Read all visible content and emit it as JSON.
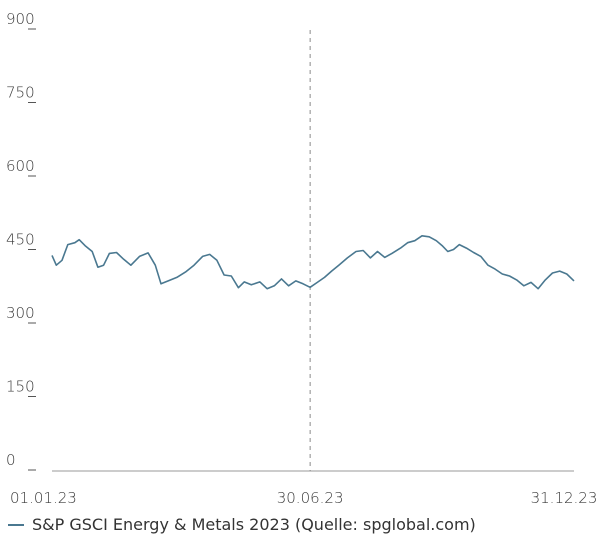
{
  "chart_data": {
    "type": "line",
    "title": "",
    "xlabel": "",
    "ylabel": "",
    "ylim": [
      0,
      900
    ],
    "yticks": [
      0,
      150,
      300,
      450,
      600,
      750,
      900
    ],
    "x_tick_labels": [
      "01.01.23",
      "30.06.23",
      "31.12.23"
    ],
    "x_range": [
      "2023-01-01",
      "2023-12-31"
    ],
    "marker_line_date": "2023-06-30",
    "grid": false,
    "legend_position": "bottom-left",
    "series": [
      {
        "name": "S&P GSCI Energy & Metals 2023 (Quelle: spglobal.com)",
        "color": "#4a7890",
        "points": [
          [
            "2023-01-01",
            440
          ],
          [
            "2023-01-04",
            420
          ],
          [
            "2023-01-08",
            430
          ],
          [
            "2023-01-12",
            462
          ],
          [
            "2023-01-17",
            466
          ],
          [
            "2023-01-20",
            472
          ],
          [
            "2023-01-24",
            460
          ],
          [
            "2023-01-29",
            448
          ],
          [
            "2023-02-02",
            416
          ],
          [
            "2023-02-06",
            420
          ],
          [
            "2023-02-10",
            444
          ],
          [
            "2023-02-15",
            446
          ],
          [
            "2023-02-20",
            432
          ],
          [
            "2023-02-25",
            420
          ],
          [
            "2023-03-03",
            438
          ],
          [
            "2023-03-09",
            445
          ],
          [
            "2023-03-14",
            420
          ],
          [
            "2023-03-18",
            382
          ],
          [
            "2023-03-23",
            388
          ],
          [
            "2023-03-29",
            395
          ],
          [
            "2023-04-04",
            406
          ],
          [
            "2023-04-10",
            420
          ],
          [
            "2023-04-16",
            438
          ],
          [
            "2023-04-21",
            442
          ],
          [
            "2023-04-26",
            430
          ],
          [
            "2023-05-01",
            400
          ],
          [
            "2023-05-06",
            398
          ],
          [
            "2023-05-11",
            374
          ],
          [
            "2023-05-15",
            386
          ],
          [
            "2023-05-20",
            380
          ],
          [
            "2023-05-26",
            386
          ],
          [
            "2023-05-31",
            372
          ],
          [
            "2023-06-05",
            378
          ],
          [
            "2023-06-10",
            392
          ],
          [
            "2023-06-15",
            378
          ],
          [
            "2023-06-20",
            388
          ],
          [
            "2023-06-25",
            382
          ],
          [
            "2023-06-30",
            375
          ],
          [
            "2023-07-05",
            385
          ],
          [
            "2023-07-10",
            395
          ],
          [
            "2023-07-15",
            408
          ],
          [
            "2023-07-20",
            420
          ],
          [
            "2023-07-26",
            435
          ],
          [
            "2023-08-01",
            448
          ],
          [
            "2023-08-06",
            450
          ],
          [
            "2023-08-11",
            435
          ],
          [
            "2023-08-16",
            448
          ],
          [
            "2023-08-21",
            436
          ],
          [
            "2023-08-26",
            444
          ],
          [
            "2023-09-01",
            455
          ],
          [
            "2023-09-06",
            466
          ],
          [
            "2023-09-11",
            470
          ],
          [
            "2023-09-16",
            480
          ],
          [
            "2023-09-21",
            478
          ],
          [
            "2023-09-26",
            470
          ],
          [
            "2023-09-30",
            460
          ],
          [
            "2023-10-04",
            448
          ],
          [
            "2023-10-08",
            452
          ],
          [
            "2023-10-12",
            462
          ],
          [
            "2023-10-17",
            455
          ],
          [
            "2023-10-22",
            446
          ],
          [
            "2023-10-27",
            438
          ],
          [
            "2023-11-01",
            420
          ],
          [
            "2023-11-06",
            412
          ],
          [
            "2023-11-11",
            402
          ],
          [
            "2023-11-16",
            398
          ],
          [
            "2023-11-21",
            390
          ],
          [
            "2023-11-26",
            378
          ],
          [
            "2023-12-01",
            385
          ],
          [
            "2023-12-06",
            372
          ],
          [
            "2023-12-11",
            390
          ],
          [
            "2023-12-16",
            404
          ],
          [
            "2023-12-21",
            408
          ],
          [
            "2023-12-26",
            402
          ],
          [
            "2023-12-31",
            388
          ]
        ]
      }
    ]
  }
}
